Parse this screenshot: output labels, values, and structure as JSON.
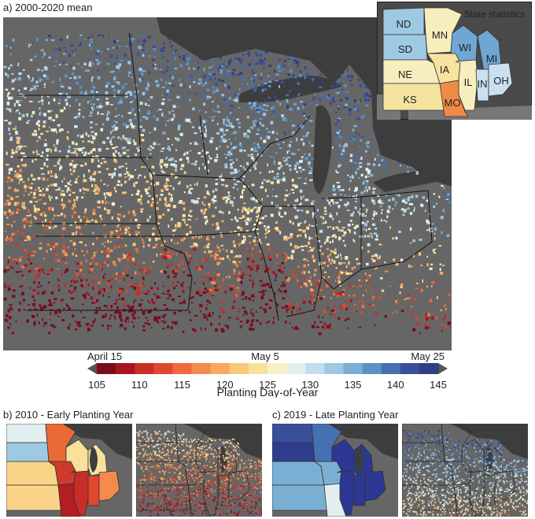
{
  "panel_a": {
    "title": "a) 2000-2020 mean"
  },
  "inset": {
    "title": "State statistics",
    "states": [
      {
        "abbr": "ND",
        "color": "#9ec9e2"
      },
      {
        "abbr": "MN",
        "color": "#f6eebc"
      },
      {
        "abbr": "SD",
        "color": "#9ec9e2"
      },
      {
        "abbr": "WI",
        "color": "#6fa6d2"
      },
      {
        "abbr": "MI",
        "color": "#6fa6d2"
      },
      {
        "abbr": "NE",
        "color": "#f6eebc"
      },
      {
        "abbr": "IA",
        "color": "#f6e3a2"
      },
      {
        "abbr": "IL",
        "color": "#f6eebc"
      },
      {
        "abbr": "IN",
        "color": "#c9e1ee"
      },
      {
        "abbr": "OH",
        "color": "#c9e1ee"
      },
      {
        "abbr": "KS",
        "color": "#f6e3a2"
      },
      {
        "abbr": "MO",
        "color": "#f08a47"
      }
    ]
  },
  "colorbar": {
    "title": "Planting Day-of-Year",
    "date_labels": [
      "April 15",
      "May 5",
      "May 25"
    ],
    "ticks": [
      "105",
      "110",
      "115",
      "120",
      "125",
      "130",
      "135",
      "140",
      "145"
    ],
    "min": 105,
    "max": 145,
    "colors": [
      "#7b0b1d",
      "#a8141f",
      "#c92d26",
      "#e0482e",
      "#ee6a3b",
      "#f48b4d",
      "#f7aa5f",
      "#f9c879",
      "#f9e09b",
      "#f7f0c2",
      "#e3eef0",
      "#c2ddec",
      "#9ec9e2",
      "#7aafd4",
      "#5c91c4",
      "#4570b1",
      "#3a4f9c",
      "#333d86"
    ]
  },
  "panel_b": {
    "title": "b) 2010 - Early Planting Year",
    "state_colors": {
      "ND": "#e3eef0",
      "MN": "#e96a35",
      "SD": "#9ec9e2",
      "WI": "#f9e09b",
      "MI": "#f9e09b",
      "NE": "#f9d488",
      "IA": "#d03a2b",
      "IL": "#c92d26",
      "IN": "#e0482e",
      "OH": "#f48b4d",
      "KS": "#f9d488",
      "MO": "#b21e22"
    }
  },
  "panel_c": {
    "title": "c) 2019 - Late Planting Year",
    "state_colors": {
      "ND": "#3a4f9c",
      "MN": "#4570b1",
      "SD": "#2f3d8c",
      "WI": "#2b3791",
      "MI": "#2b3791",
      "NE": "#7aafd4",
      "IA": "#7aafd4",
      "IL": "#2b3791",
      "IN": "#2b3791",
      "OH": "#2b3791",
      "KS": "#7aafd4",
      "MO": "#e3eef0"
    }
  }
}
